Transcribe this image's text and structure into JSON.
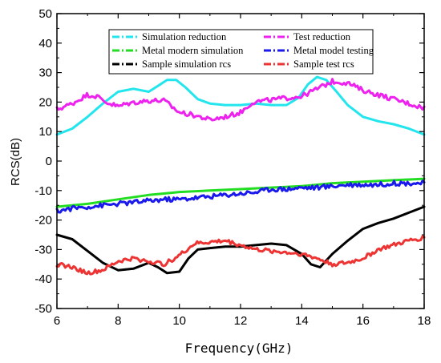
{
  "chart_data": {
    "type": "line",
    "xlabel": "Frequency(GHz)",
    "ylabel": "RCS(dB)",
    "xlim": [
      6,
      18
    ],
    "ylim": [
      -50,
      50
    ],
    "x_ticks": [
      "6",
      "8",
      "10",
      "12",
      "14",
      "16",
      "18"
    ],
    "y_ticks": [
      "-50",
      "-40",
      "-30",
      "-20",
      "-10",
      "0",
      "10",
      "20",
      "30",
      "40",
      "50"
    ],
    "grid": false,
    "legend_position": "top",
    "series": [
      {
        "name": "Simulation reduction",
        "color": "#22e5ee",
        "noise": 0,
        "x": [
          6,
          6.5,
          7,
          7.5,
          8,
          8.5,
          9,
          9.3,
          9.6,
          9.9,
          10.2,
          10.6,
          11,
          11.5,
          12,
          12.5,
          13,
          13.5,
          13.9,
          14.2,
          14.5,
          14.8,
          15.1,
          15.5,
          16,
          16.5,
          17,
          17.5,
          18
        ],
        "y": [
          9,
          11,
          15,
          19.5,
          23.5,
          24.5,
          23.5,
          25.5,
          27.5,
          27.5,
          25,
          21,
          19.5,
          19,
          19,
          19.5,
          19,
          19,
          21.5,
          26,
          28.5,
          27.5,
          24,
          19,
          15,
          13.5,
          12.5,
          11,
          9
        ]
      },
      {
        "name": "Test reduction",
        "color": "#ee22ee",
        "noise": 0.8,
        "x": [
          6,
          6.5,
          7,
          7.3,
          7.6,
          8,
          8.3,
          8.6,
          9,
          9.5,
          10,
          10.5,
          11,
          11.5,
          12,
          12.4,
          12.8,
          13.2,
          13.6,
          14,
          14.5,
          15,
          15.5,
          16,
          16.5,
          17,
          17.5,
          18
        ],
        "y": [
          17.5,
          19.5,
          22.5,
          22,
          20,
          18.5,
          19.5,
          20,
          20.5,
          20.5,
          16.5,
          15.5,
          14,
          15,
          16.5,
          20,
          20.5,
          21,
          21.5,
          22,
          24.5,
          27,
          26.5,
          24,
          22.5,
          21,
          19.5,
          18
        ]
      },
      {
        "name": "Metal modern simulation",
        "color": "#22dd22",
        "noise": 0,
        "x": [
          6,
          7,
          8,
          9,
          9.5,
          10,
          11,
          12,
          13,
          14,
          15,
          16,
          17,
          18
        ],
        "y": [
          -15.5,
          -14.5,
          -13,
          -11.5,
          -11,
          -10.5,
          -10,
          -9.5,
          -9,
          -8.5,
          -7.5,
          -7,
          -6.5,
          -6
        ]
      },
      {
        "name": "Metal model testing",
        "color": "#1a1aee",
        "noise": 0.8,
        "x": [
          6,
          6.5,
          7,
          7.5,
          8,
          8.5,
          9,
          9.5,
          10,
          10.5,
          11,
          11.5,
          12,
          12.5,
          13,
          13.5,
          14,
          14.5,
          15,
          15.5,
          16,
          16.5,
          17,
          17.5,
          18
        ],
        "y": [
          -17,
          -16,
          -15.5,
          -15,
          -14.5,
          -14,
          -13.5,
          -13,
          -13,
          -12.5,
          -12,
          -11.5,
          -11,
          -10.5,
          -9.5,
          -9.5,
          -9,
          -9,
          -8.5,
          -8,
          -8,
          -8,
          -7.5,
          -7.5,
          -7.5
        ]
      },
      {
        "name": "Sample simulation rcs",
        "color": "#000000",
        "noise": 0,
        "x": [
          6,
          6.5,
          7,
          7.5,
          8,
          8.5,
          9,
          9.3,
          9.6,
          10,
          10.3,
          10.6,
          11,
          11.5,
          12,
          12.5,
          13,
          13.5,
          14,
          14.3,
          14.6,
          15,
          15.5,
          16,
          16.5,
          17,
          17.5,
          18
        ],
        "y": [
          -25,
          -26.5,
          -30.5,
          -34.5,
          -37,
          -36.5,
          -34.5,
          -36,
          -38,
          -37.5,
          -33,
          -30,
          -29.5,
          -29,
          -29,
          -28.5,
          -28,
          -28.5,
          -31.5,
          -35,
          -36,
          -31.5,
          -27,
          -23,
          -21,
          -19.5,
          -17.5,
          -15.5
        ]
      },
      {
        "name": "Sample test rcs",
        "color": "#ee3333",
        "noise": 0.7,
        "x": [
          6,
          6.5,
          7,
          7.5,
          8,
          8.5,
          9,
          9.5,
          10,
          10.5,
          11,
          11.5,
          12,
          12.5,
          13,
          13.5,
          14,
          14.5,
          15,
          15.5,
          16,
          16.5,
          17,
          17.5,
          18
        ],
        "y": [
          -35,
          -36,
          -38,
          -37,
          -34,
          -33,
          -34,
          -35,
          -32,
          -28,
          -27.5,
          -27,
          -28.5,
          -30,
          -30.5,
          -31,
          -31.5,
          -33,
          -35,
          -34.5,
          -33,
          -30,
          -28.5,
          -27,
          -26
        ]
      }
    ]
  }
}
